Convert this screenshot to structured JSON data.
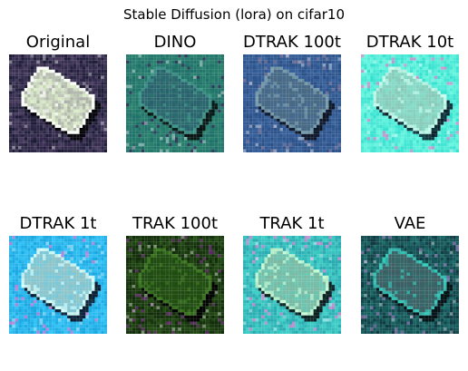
{
  "figure": {
    "title": "Stable Diffusion (lora) on cifar10"
  },
  "panels": [
    {
      "title": "Original",
      "style": {
        "bg": "#1a1a34",
        "noise": "#5a4a70",
        "shape": "#dff0cc",
        "shapeEdge": "#ffffff",
        "shadow": "#050508",
        "accent": "#3d2b55"
      }
    },
    {
      "title": "DINO",
      "style": {
        "bg": "#1f6f6a",
        "noise": "#2f8a70",
        "shape": "#2a5f6e",
        "shapeEdge": "#3f9a8a",
        "shadow": "#07110f",
        "accent": "#3a1f55"
      }
    },
    {
      "title": "DTRAK 100t",
      "style": {
        "bg": "#2a4f86",
        "noise": "#3f6aa6",
        "shape": "#4a6a80",
        "shapeEdge": "#7aa0b0",
        "shadow": "#0c1322",
        "accent": "#8a7a9a"
      }
    },
    {
      "title": "DTRAK 10t",
      "style": {
        "bg": "#36e0d0",
        "noise": "#7fffe6",
        "shape": "#8ac8b8",
        "shapeEdge": "#c8fff0",
        "shadow": "#0b1f2a",
        "accent": "#ff77cc"
      }
    },
    {
      "title": "DTRAK 1t",
      "style": {
        "bg": "#1aa6e0",
        "noise": "#3fd0ff",
        "shape": "#98c4c4",
        "shapeEdge": "#d6ffff",
        "shadow": "#0b1728",
        "accent": "#ff6fd0"
      }
    },
    {
      "title": "TRAK 100t",
      "style": {
        "bg": "#10280a",
        "noise": "#2b5a18",
        "shape": "#1e4a10",
        "shapeEdge": "#3e7a20",
        "shadow": "#000000",
        "accent": "#7a2a8a"
      }
    },
    {
      "title": "TRAK 1t",
      "style": {
        "bg": "#2aa8b0",
        "noise": "#47e0d0",
        "shape": "#7fb7a0",
        "shapeEdge": "#c8ffd8",
        "shadow": "#0b1a1a",
        "accent": "#ff7ad8"
      }
    },
    {
      "title": "VAE",
      "style": {
        "bg": "#0f3840",
        "noise": "#1f7f7a",
        "shape": "#3f5d62",
        "shapeEdge": "#2fd0c0",
        "shadow": "#051014",
        "accent": "#a07ac0"
      }
    }
  ]
}
